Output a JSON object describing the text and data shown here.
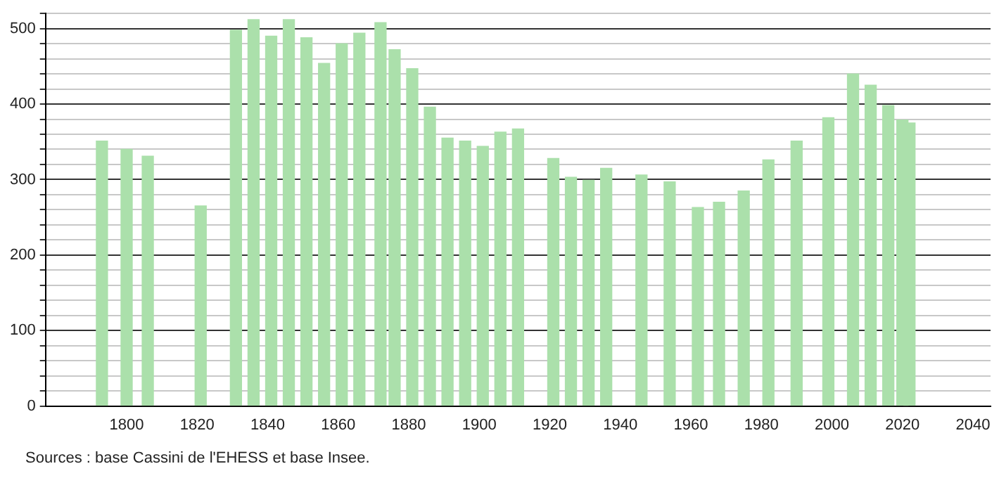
{
  "chart_data": {
    "type": "bar",
    "color": "#abe0ab",
    "x": [
      1793,
      1800,
      1806,
      1821,
      1831,
      1836,
      1841,
      1846,
      1851,
      1856,
      1861,
      1866,
      1872,
      1876,
      1881,
      1886,
      1891,
      1896,
      1901,
      1906,
      1911,
      1921,
      1926,
      1931,
      1936,
      1946,
      1954,
      1962,
      1968,
      1975,
      1982,
      1990,
      1999,
      2006,
      2011,
      2016,
      2020,
      2022
    ],
    "values": [
      351,
      340,
      331,
      265,
      498,
      512,
      490,
      512,
      488,
      454,
      480,
      494,
      508,
      472,
      447,
      396,
      355,
      351,
      344,
      363,
      367,
      328,
      303,
      299,
      315,
      306,
      297,
      263,
      270,
      285,
      326,
      351,
      382,
      440,
      425,
      398,
      379,
      375
    ],
    "xlim": [
      1777,
      2045
    ],
    "xticks": [
      1800,
      1820,
      1840,
      1860,
      1880,
      1900,
      1920,
      1940,
      1960,
      1980,
      2000,
      2020,
      2040
    ],
    "ylim": [
      0,
      520
    ],
    "yticks": [
      0,
      {
        "value": 20,
        "label": null
      },
      {
        "value": 40,
        "label": null
      },
      {
        "value": 60,
        "label": null
      },
      {
        "value": 80,
        "label": null
      },
      100,
      {
        "value": 120,
        "label": null
      },
      {
        "value": 140,
        "label": null
      },
      {
        "value": 160,
        "label": null
      },
      {
        "value": 180,
        "label": null
      },
      200,
      {
        "value": 220,
        "label": null
      },
      {
        "value": 240,
        "label": null
      },
      {
        "value": 260,
        "label": null
      },
      {
        "value": 280,
        "label": null
      },
      300,
      {
        "value": 320,
        "label": null
      },
      {
        "value": 340,
        "label": null
      },
      {
        "value": 360,
        "label": null
      },
      {
        "value": 380,
        "label": null
      },
      400,
      {
        "value": 420,
        "label": null
      },
      {
        "value": 440,
        "label": null
      },
      {
        "value": 460,
        "label": null
      },
      {
        "value": 480,
        "label": null
      },
      500,
      {
        "value": 520,
        "label": null
      }
    ],
    "grid": "y",
    "annotations": [
      "Sources : base Cassini de l'EHESS et base Insee."
    ]
  }
}
